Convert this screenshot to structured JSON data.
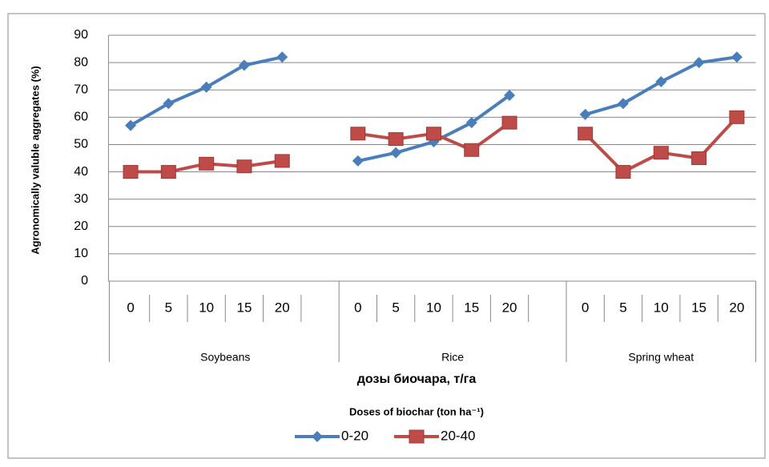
{
  "chart_data": {
    "type": "line",
    "y_label": "Agronomically  valuble aggregates (%)",
    "x_label": "дозы биочара, т/га",
    "x_sublabel": "Doses of biochar (ton ha⁻¹)",
    "categories": [
      "0",
      "5",
      "10",
      "15",
      "20",
      null,
      "0",
      "5",
      "10",
      "15",
      "20",
      null,
      "0",
      "5",
      "10",
      "15",
      "20"
    ],
    "groups": [
      "Soybeans",
      "Rice",
      "Spring wheat"
    ],
    "series": [
      {
        "name": "0-20",
        "color": "#4a7ebb",
        "marker": "diamond",
        "values": [
          57,
          65,
          71,
          79,
          82,
          null,
          44,
          47,
          51,
          58,
          68,
          null,
          61,
          65,
          73,
          80,
          82
        ]
      },
      {
        "name": "20-40",
        "color": "#be4b48",
        "marker": "square",
        "values": [
          40,
          40,
          43,
          42,
          44,
          null,
          54,
          52,
          54,
          48,
          58,
          null,
          54,
          40,
          47,
          45,
          60
        ]
      }
    ],
    "ylim": [
      0,
      90
    ],
    "yticks": [
      0,
      10,
      20,
      30,
      40,
      50,
      60,
      70,
      80,
      90
    ],
    "grid": true,
    "legend": "bottom"
  }
}
